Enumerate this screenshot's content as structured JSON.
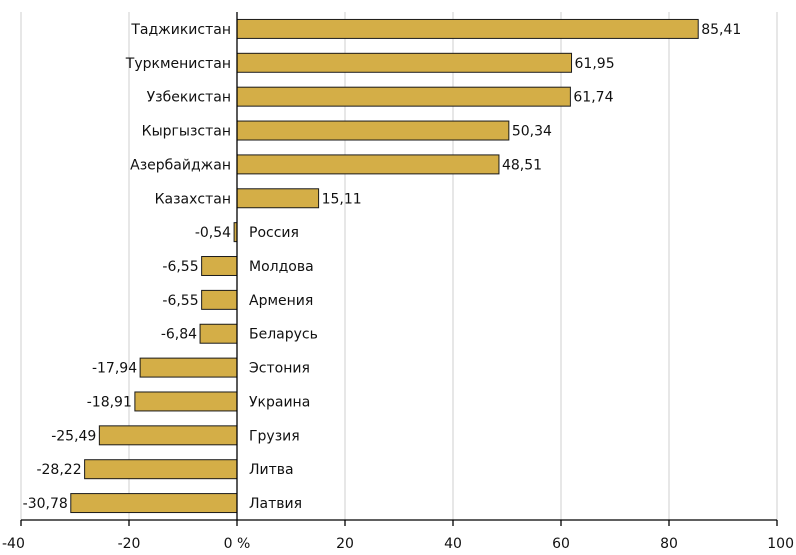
{
  "chart_data": {
    "type": "bar",
    "orientation": "horizontal",
    "categories": [
      "Таджикистан",
      "Туркменистан",
      "Узбекистан",
      "Кыргызстан",
      "Азербайджан",
      "Казахстан",
      "Россия",
      "Молдова",
      "Армения",
      "Беларусь",
      "Эстония",
      "Украина",
      "Грузия",
      "Литва",
      "Латвия"
    ],
    "values": [
      85.41,
      61.95,
      61.74,
      50.34,
      48.51,
      15.11,
      -0.54,
      -6.55,
      -6.55,
      -6.84,
      -17.94,
      -18.91,
      -25.49,
      -28.22,
      -30.78
    ],
    "value_labels": [
      "85,41",
      "61,95",
      "61,74",
      "50,34",
      "48,51",
      "15,11",
      "-0,54",
      "-6,55",
      "-6,55",
      "-6,84",
      "-17,94",
      "-18,91",
      "-25,49",
      "-28,22",
      "-30,78"
    ],
    "xlim": [
      -40,
      100
    ],
    "xticks": [
      -40,
      -20,
      0,
      20,
      40,
      60,
      80,
      100
    ],
    "xtick_labels": [
      "-40",
      "-20",
      "0 %",
      "20",
      "40",
      "60",
      "80",
      "100"
    ],
    "grid": true,
    "bar_color": "#d4ae47",
    "title": "",
    "xlabel": "",
    "ylabel": ""
  }
}
